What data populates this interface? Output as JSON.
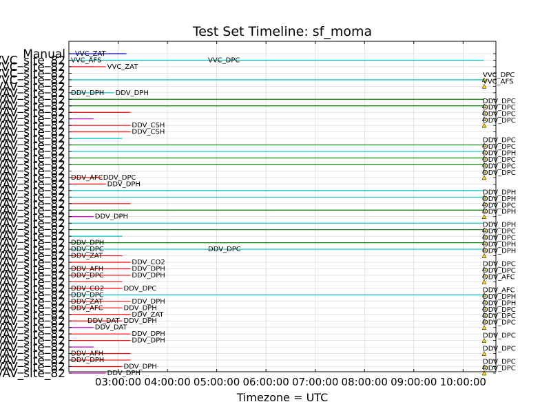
{
  "chart_data": {
    "type": "timeline",
    "title": "Test Set Timeline: sf_moma",
    "xlabel": "Timezone = UTC",
    "ylabel": "",
    "grid": true,
    "x_range": [
      "02:00:00",
      "10:40:00"
    ],
    "x_ticks": [
      "03:00:00",
      "04:00:00",
      "05:00:00",
      "06:00:00",
      "07:00:00",
      "08:00:00",
      "09:00:00",
      "10:00:00"
    ],
    "row_labels": [
      "Manual",
      "VVC_site_82",
      "VVC_site_82",
      "VVC_site_82",
      "VVC_site_82",
      "VAV_site_82",
      "VAV_site_82",
      "VAV_site_82",
      "VAV_site_82",
      "VAV_site_82",
      "VAV_site_82",
      "VAV_site_82",
      "VAV_site_82",
      "VAV_site_82",
      "VAV_site_82",
      "VAV_site_82",
      "VAV_site_82",
      "VAV_site_82",
      "VAV_site_82",
      "VAV_site_82",
      "VAV_site_82",
      "VAV_site_82",
      "VAV_site_82",
      "VAV_site_82",
      "VAV_site_82",
      "VAV_site_82",
      "VAV_site_82",
      "VAV_site_82",
      "VAV_site_82",
      "VAV_site_82",
      "VAV_site_82",
      "VAV_site_82",
      "VAV_site_82",
      "VAV_site_82",
      "VAV_site_82",
      "VAV_site_82",
      "VAV_site_82",
      "VAV_site_82",
      "VAV_site_82",
      "VAV_site_82",
      "VAV_site_82",
      "VAV_site_82",
      "VAV_site_82",
      "VAV_site_82",
      "VAV_site_82",
      "VAV_site_82",
      "VAV_site_82",
      "VAV_site_82",
      "VAV_site_82",
      "VAV_site_82"
    ],
    "colors": {
      "cyan": "#00bfbf",
      "green": "#008000",
      "red": "#ff0000",
      "magenta": "#bf00bf",
      "blue": "#0000ff",
      "marker": "#ffd700"
    },
    "tasks": [
      {
        "row": 0,
        "start": "02:00:00",
        "end": "03:10:00",
        "color": "blue",
        "label": ""
      },
      {
        "row": 1,
        "start": "02:00:00",
        "end": "10:25:00",
        "color": "cyan",
        "label": "VVC_DPC"
      },
      {
        "row": 2,
        "start": "02:00:00",
        "end": "02:30:00",
        "color": "magenta",
        "label": ""
      },
      {
        "row": 2,
        "start": "02:00:00",
        "end": "02:45:00",
        "color": "red",
        "label": "VVC_ZAT"
      },
      {
        "row": 4,
        "start": "02:00:00",
        "end": "10:25:00",
        "color": "cyan",
        "label": ""
      },
      {
        "row": 6,
        "start": "02:00:00",
        "end": "02:55:00",
        "color": "cyan",
        "label": "DDV_DPH"
      },
      {
        "row": 7,
        "start": "02:00:00",
        "end": "10:25:00",
        "color": "green",
        "label": ""
      },
      {
        "row": 8,
        "start": "02:00:00",
        "end": "10:25:00",
        "color": "green",
        "label": ""
      },
      {
        "row": 9,
        "start": "02:00:00",
        "end": "03:15:00",
        "color": "red",
        "label": ""
      },
      {
        "row": 10,
        "start": "02:00:00",
        "end": "02:30:00",
        "color": "magenta",
        "label": ""
      },
      {
        "row": 11,
        "start": "02:00:00",
        "end": "03:15:00",
        "color": "red",
        "label": "DDV_CSH"
      },
      {
        "row": 12,
        "start": "02:00:00",
        "end": "03:15:00",
        "color": "red",
        "label": "DDV_CSH"
      },
      {
        "row": 13,
        "start": "02:00:00",
        "end": "03:05:00",
        "color": "cyan",
        "label": ""
      },
      {
        "row": 14,
        "start": "02:00:00",
        "end": "10:25:00",
        "color": "green",
        "label": ""
      },
      {
        "row": 15,
        "start": "02:00:00",
        "end": "10:25:00",
        "color": "cyan",
        "label": ""
      },
      {
        "row": 16,
        "start": "02:00:00",
        "end": "10:25:00",
        "color": "green",
        "label": ""
      },
      {
        "row": 17,
        "start": "02:00:00",
        "end": "10:25:00",
        "color": "green",
        "label": ""
      },
      {
        "row": 19,
        "start": "02:00:00",
        "end": "02:40:00",
        "color": "red",
        "label": "DDV_DPC"
      },
      {
        "row": 20,
        "start": "02:00:00",
        "end": "02:45:00",
        "color": "red",
        "label": "DDV_DPH"
      },
      {
        "row": 21,
        "start": "02:00:00",
        "end": "10:25:00",
        "color": "cyan",
        "label": ""
      },
      {
        "row": 22,
        "start": "02:00:00",
        "end": "10:25:00",
        "color": "cyan",
        "label": ""
      },
      {
        "row": 23,
        "start": "02:00:00",
        "end": "03:15:00",
        "color": "red",
        "label": ""
      },
      {
        "row": 24,
        "start": "02:00:00",
        "end": "10:25:00",
        "color": "green",
        "label": ""
      },
      {
        "row": 25,
        "start": "02:00:00",
        "end": "02:30:00",
        "color": "magenta",
        "label": "DDV_DPH"
      },
      {
        "row": 26,
        "start": "02:00:00",
        "end": "10:25:00",
        "color": "cyan",
        "label": ""
      },
      {
        "row": 27,
        "start": "02:00:00",
        "end": "10:25:00",
        "color": "green",
        "label": ""
      },
      {
        "row": 28,
        "start": "02:00:00",
        "end": "03:05:00",
        "color": "cyan",
        "label": ""
      },
      {
        "row": 29,
        "start": "02:00:00",
        "end": "10:25:00",
        "color": "green",
        "label": ""
      },
      {
        "row": 30,
        "start": "02:00:00",
        "end": "10:25:00",
        "color": "cyan",
        "label": "DDV_DPC"
      },
      {
        "row": 31,
        "start": "02:00:00",
        "end": "03:05:00",
        "color": "red",
        "label": ""
      },
      {
        "row": 32,
        "start": "02:00:00",
        "end": "03:15:00",
        "color": "red",
        "label": "DDV_CO2"
      },
      {
        "row": 33,
        "start": "02:00:00",
        "end": "03:15:00",
        "color": "red",
        "label": "DDV_DPH"
      },
      {
        "row": 34,
        "start": "02:00:00",
        "end": "03:15:00",
        "color": "red",
        "label": "DDV_DPH"
      },
      {
        "row": 35,
        "start": "02:00:00",
        "end": "03:05:00",
        "color": "red",
        "label": ""
      },
      {
        "row": 36,
        "start": "02:00:00",
        "end": "03:05:00",
        "color": "red",
        "label": "DDV_DPC"
      },
      {
        "row": 37,
        "start": "02:00:00",
        "end": "10:25:00",
        "color": "cyan",
        "label": ""
      },
      {
        "row": 38,
        "start": "02:00:00",
        "end": "03:15:00",
        "color": "red",
        "label": "DDV_DPH"
      },
      {
        "row": 39,
        "start": "02:00:00",
        "end": "03:05:00",
        "color": "red",
        "label": "DDV_DPH"
      },
      {
        "row": 40,
        "start": "02:00:00",
        "end": "03:15:00",
        "color": "red",
        "label": "DDV_ZAT"
      },
      {
        "row": 41,
        "start": "02:00:00",
        "end": "03:05:00",
        "color": "red",
        "label": "DDV_DPH"
      },
      {
        "row": 42,
        "start": "02:00:00",
        "end": "02:30:00",
        "color": "magenta",
        "label": "DDV_DAT"
      },
      {
        "row": 43,
        "start": "02:00:00",
        "end": "03:15:00",
        "color": "red",
        "label": "DDV_DPH"
      },
      {
        "row": 44,
        "start": "02:00:00",
        "end": "03:15:00",
        "color": "red",
        "label": "DDV_DPH"
      },
      {
        "row": 45,
        "start": "02:00:00",
        "end": "02:30:00",
        "color": "magenta",
        "label": ""
      },
      {
        "row": 46,
        "start": "02:00:00",
        "end": "03:15:00",
        "color": "red",
        "label": ""
      },
      {
        "row": 47,
        "start": "02:00:00",
        "end": "03:15:00",
        "color": "red",
        "label": ""
      },
      {
        "row": 48,
        "start": "02:00:00",
        "end": "03:05:00",
        "color": "red",
        "label": "DDV_DPH"
      },
      {
        "row": 49,
        "start": "02:00:00",
        "end": "02:45:00",
        "color": "magenta",
        "label": "DDV_DPH"
      }
    ],
    "inline_labels": [
      {
        "row": 0,
        "time": "02:05:00",
        "text": "VVC_ZAT"
      },
      {
        "row": 1,
        "time": "02:00:00",
        "text": "VVC_AFS"
      },
      {
        "row": 6,
        "time": "02:00:00",
        "text": "DDV_DPH"
      },
      {
        "row": 19,
        "time": "02:00:00",
        "text": "DDV_AFC"
      },
      {
        "row": 29,
        "time": "02:00:00",
        "text": "DDV_DPH"
      },
      {
        "row": 30,
        "time": "02:00:00",
        "text": "DDV_DPC"
      },
      {
        "row": 31,
        "time": "02:00:00",
        "text": "DDV_ZAT"
      },
      {
        "row": 33,
        "time": "02:00:00",
        "text": "DDV_AFH"
      },
      {
        "row": 34,
        "time": "02:00:00",
        "text": "DDV_DPC"
      },
      {
        "row": 36,
        "time": "02:00:00",
        "text": "DDV_CO2"
      },
      {
        "row": 37,
        "time": "02:00:00",
        "text": "DDV_DPC"
      },
      {
        "row": 38,
        "time": "02:00:00",
        "text": "DDV_ZAT"
      },
      {
        "row": 39,
        "time": "02:00:00",
        "text": "DDV_AFC"
      },
      {
        "row": 41,
        "time": "02:20:00",
        "text": "DDV_DAT"
      },
      {
        "row": 46,
        "time": "02:00:00",
        "text": "DDV_AFH"
      },
      {
        "row": 47,
        "time": "02:00:00",
        "text": "DDV_DPH"
      }
    ],
    "end_markers": [
      {
        "row": 4,
        "text": "VVC_DPC"
      },
      {
        "row": 5,
        "text": "VVC_AFS"
      },
      {
        "row": 8,
        "text": "DDV_DPC"
      },
      {
        "row": 9,
        "text": "DDV_DPC"
      },
      {
        "row": 10,
        "text": "DDV_DPC"
      },
      {
        "row": 11,
        "text": "DDV_DPC"
      },
      {
        "row": 14,
        "text": "DDV_DPC"
      },
      {
        "row": 15,
        "text": "DDV_DPC"
      },
      {
        "row": 16,
        "text": "DDV_DPH"
      },
      {
        "row": 17,
        "text": "DDV_DPC"
      },
      {
        "row": 18,
        "text": "DDV_DPC"
      },
      {
        "row": 19,
        "text": "DDV_DPC"
      },
      {
        "row": 22,
        "text": "DDV_DPH"
      },
      {
        "row": 23,
        "text": "DDV_DPH"
      },
      {
        "row": 24,
        "text": "DDV_DPC"
      },
      {
        "row": 25,
        "text": "DDV_DPH"
      },
      {
        "row": 27,
        "text": "DDV_DPH"
      },
      {
        "row": 28,
        "text": "DDV_DPC"
      },
      {
        "row": 29,
        "text": "DDV_DPC"
      },
      {
        "row": 30,
        "text": "DDV_DPH"
      },
      {
        "row": 31,
        "text": "DDV_DPH"
      },
      {
        "row": 33,
        "text": "DDV_DPC"
      },
      {
        "row": 34,
        "text": "DDV_DPC"
      },
      {
        "row": 35,
        "text": "DDV_AFC"
      },
      {
        "row": 37,
        "text": "DDV_AFC"
      },
      {
        "row": 38,
        "text": "DDV_DPH"
      },
      {
        "row": 39,
        "text": "DDV_DPH"
      },
      {
        "row": 40,
        "text": "DDV_DPC"
      },
      {
        "row": 41,
        "text": "DDV_DPC"
      },
      {
        "row": 42,
        "text": "DDV_DPC"
      },
      {
        "row": 44,
        "text": "DDV_DPC"
      },
      {
        "row": 46,
        "text": "DDV_DPC"
      },
      {
        "row": 48,
        "text": "DDV_DPC"
      },
      {
        "row": 49,
        "text": "DDV_DPC"
      }
    ]
  }
}
